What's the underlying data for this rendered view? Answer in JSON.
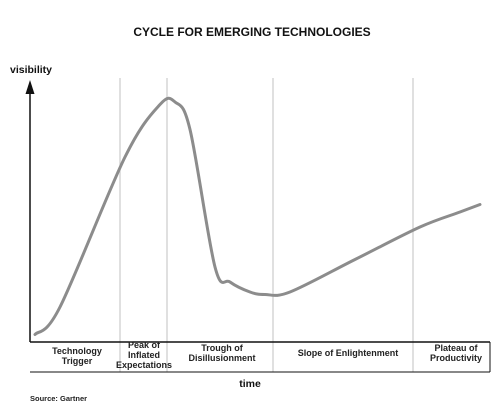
{
  "chart_data": {
    "type": "line",
    "title": "CYCLE FOR EMERGING TECHNOLOGIES",
    "xlabel": "time",
    "ylabel": "visibility",
    "source": "Source:  Gartner",
    "phases": [
      {
        "lines": [
          "Technology",
          "Trigger"
        ]
      },
      {
        "lines": [
          "Peak of",
          "Inflated",
          "Expectations"
        ]
      },
      {
        "lines": [
          "Trough of",
          "Disillusionment"
        ]
      },
      {
        "lines": [
          "Slope of Enlightenment"
        ]
      },
      {
        "lines": [
          "Plateau of",
          "Productivity"
        ]
      }
    ],
    "series": [
      {
        "x": [
          0.05,
          0.3,
          0.95,
          1.3,
          1.45,
          1.6,
          1.85,
          2.0,
          2.2,
          2.35,
          2.6,
          3.25,
          3.9,
          4.3,
          4.5
        ],
        "y": [
          0.03,
          0.14,
          0.74,
          0.95,
          0.96,
          0.85,
          0.3,
          0.24,
          0.2,
          0.19,
          0.2,
          0.33,
          0.46,
          0.52,
          0.55
        ]
      }
    ],
    "line_color": "#8c8c8c",
    "divider_color": "#cccccc",
    "axis_color": "#111111",
    "xlim": [
      0,
      4.6
    ],
    "ylim": [
      0,
      1
    ]
  }
}
